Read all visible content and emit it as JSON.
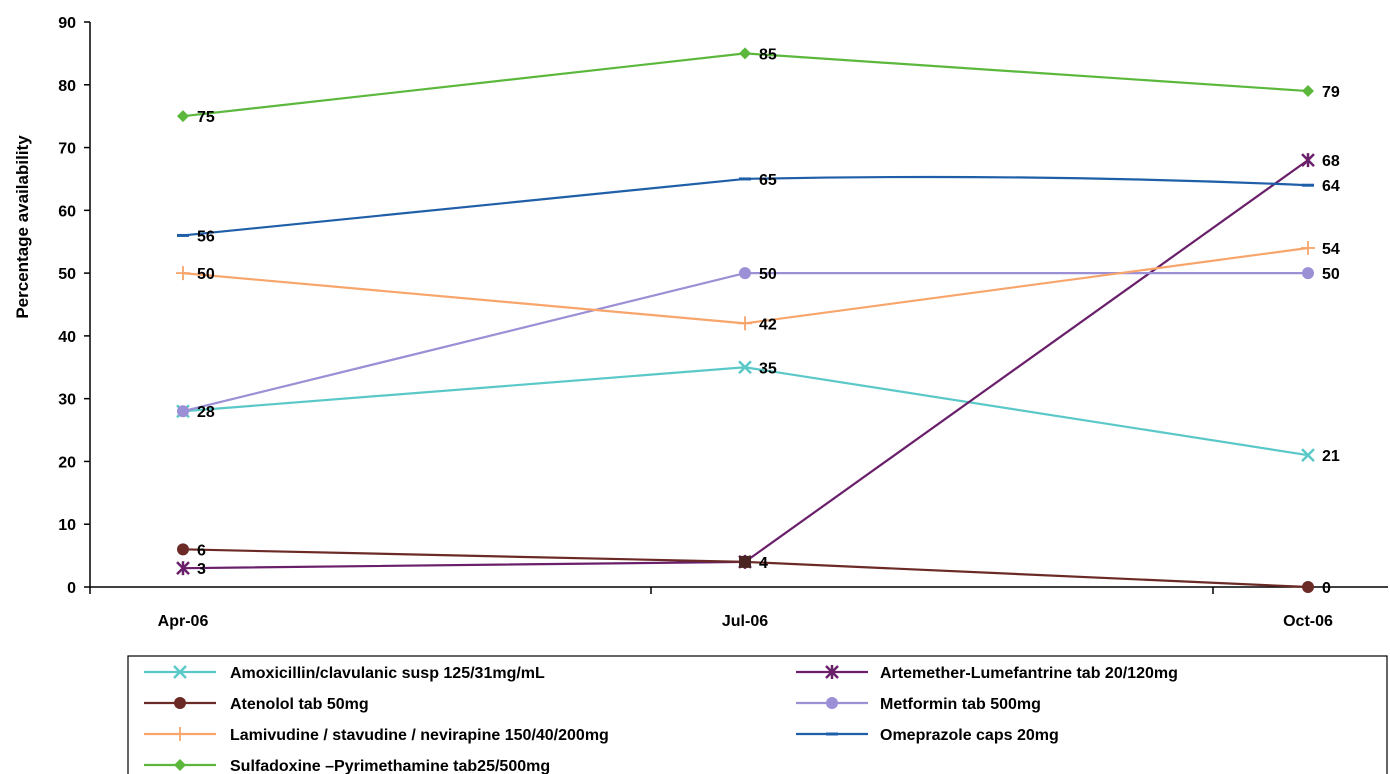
{
  "chart_data": {
    "type": "line",
    "categories": [
      "Apr-06",
      "Jul-06",
      "Oct-06"
    ],
    "ylabel": "Percentage availability",
    "xlabel": "",
    "ylim": [
      0,
      90
    ],
    "yticks": [
      0,
      10,
      20,
      30,
      40,
      50,
      60,
      70,
      80,
      90
    ],
    "grid": false,
    "legend_position": "bottom",
    "series": [
      {
        "name": "Amoxicillin/clavulanic susp 125/31mg/mL",
        "values": [
          28,
          35,
          21
        ],
        "color": "#5bc8c8",
        "marker": "x",
        "labels": [
          "28",
          "35",
          "21"
        ]
      },
      {
        "name": "Artemether-Lumefantrine tab 20/120mg",
        "values": [
          3,
          4,
          68
        ],
        "color": "#6a1f6a",
        "marker": "asterisk",
        "labels": [
          "3",
          "",
          "68"
        ]
      },
      {
        "name": "Atenolol tab 50mg",
        "values": [
          6,
          4,
          0
        ],
        "color": "#6b2a25",
        "marker": "circle",
        "labels": [
          "6",
          "4",
          "0"
        ]
      },
      {
        "name": "Metformin tab 500mg",
        "values": [
          28,
          50,
          50
        ],
        "color": "#9b8fd6",
        "marker": "circle",
        "labels": [
          "",
          "50",
          "50"
        ]
      },
      {
        "name": "Lamivudine / stavudine / nevirapine 150/40/200mg",
        "values": [
          50,
          42,
          54
        ],
        "color": "#f7a56a",
        "marker": "plus",
        "labels": [
          "50",
          "42",
          "54"
        ]
      },
      {
        "name": "Omeprazole caps 20mg",
        "values": [
          56,
          65,
          64
        ],
        "color": "#1f5fa8",
        "marker": "dash",
        "labels": [
          "56",
          "65",
          "64"
        ]
      },
      {
        "name": "Sulfadoxine –Pyrimethamine tab25/500mg",
        "values": [
          75,
          85,
          79
        ],
        "color": "#5cb83c",
        "marker": "diamond",
        "labels": [
          "75",
          "85",
          "79"
        ]
      }
    ]
  }
}
